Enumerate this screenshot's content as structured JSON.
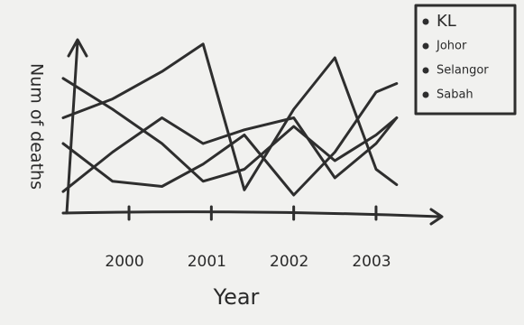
{
  "chart_data": {
    "type": "line",
    "y_label": "Num of deaths",
    "x_label": "Year",
    "x": [
      1999.2,
      1999.8,
      2000.4,
      2000.9,
      2001.4,
      2002,
      2002.5,
      2003,
      2003.25
    ],
    "xlim": [
      1999.2,
      2003.8
    ],
    "xticks": [
      2000,
      2001,
      2002,
      2003
    ],
    "ylim": [
      0,
      100
    ],
    "legend": "top-right",
    "series": [
      {
        "name": "KL",
        "color": "#2e2e2e",
        "values": [
          55,
          66,
          82,
          98,
          13,
          60,
          90,
          25,
          16
        ]
      },
      {
        "name": "Johor",
        "color": "#2e2e2e",
        "values": [
          78,
          60,
          40,
          18,
          25,
          50,
          30,
          45,
          55
        ]
      },
      {
        "name": "Selangor",
        "color": "#2e2e2e",
        "values": [
          40,
          18,
          15,
          28,
          45,
          10,
          35,
          70,
          75
        ]
      },
      {
        "name": "Sabah",
        "color": "#2e2e2e",
        "values": [
          12,
          35,
          55,
          40,
          48,
          55,
          20,
          40,
          55
        ]
      }
    ]
  }
}
